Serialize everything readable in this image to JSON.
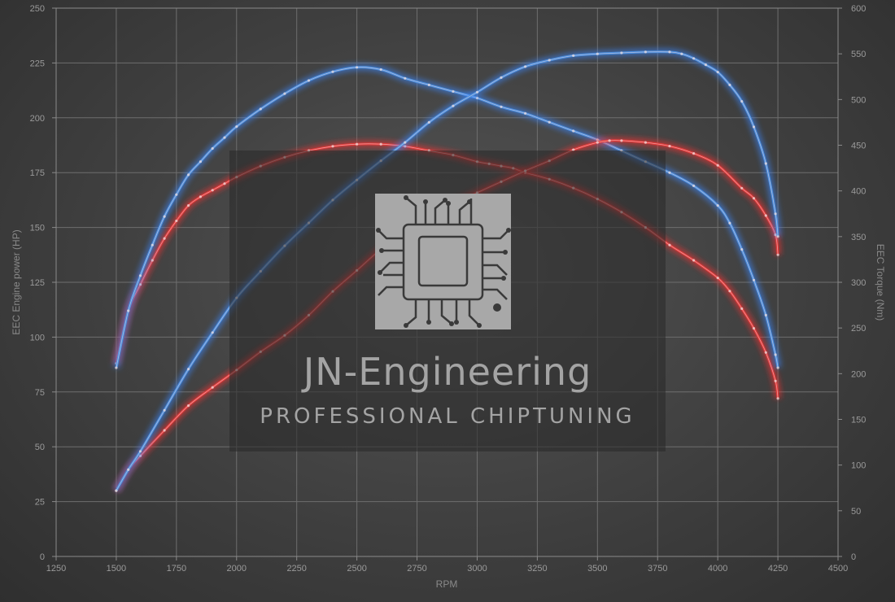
{
  "watermark": {
    "title": "JN-Engineering",
    "subtitle": "PROFESSIONAL CHIPTUNING",
    "logo_icon": "microchip-icon"
  },
  "chart_data": {
    "type": "line",
    "xlabel": "RPM",
    "ylabel_left": "EEC Engine power (HP)",
    "ylabel_right": "EEC Torque (Nm)",
    "xlim": [
      1250,
      4500
    ],
    "xticks": [
      1250,
      1500,
      1750,
      2000,
      2250,
      2500,
      2750,
      3000,
      3250,
      3500,
      3750,
      4000,
      4250,
      4500
    ],
    "ylim_left": [
      0,
      250
    ],
    "yticks_left": [
      0,
      25,
      50,
      75,
      100,
      125,
      150,
      175,
      200,
      225,
      250
    ],
    "ylim_right": [
      0,
      600
    ],
    "yticks_right": [
      0,
      50,
      100,
      150,
      200,
      250,
      300,
      350,
      400,
      450,
      500,
      550,
      600
    ],
    "grid": true,
    "colors": {
      "stock": "#e23a3a",
      "tuned": "#4a8fe0",
      "stock_glow": "#ff3030",
      "tuned_glow": "#3d86ff"
    },
    "series": [
      {
        "key": "stock_power",
        "axis": "left",
        "color": "stock",
        "x": [
          1500,
          1550,
          1600,
          1650,
          1700,
          1750,
          1800,
          1850,
          1900,
          1950,
          2000,
          2100,
          2200,
          2300,
          2400,
          2500,
          2600,
          2700,
          2800,
          2900,
          3000,
          3050,
          3100,
          3150,
          3200,
          3300,
          3400,
          3500,
          3600,
          3700,
          3800,
          3900,
          4000,
          4050,
          4100,
          4150,
          4200,
          4240,
          4250
        ],
        "values": [
          88,
          112,
          124,
          135,
          145,
          153,
          160,
          164,
          167,
          170,
          173,
          178,
          182,
          185,
          187,
          188,
          188,
          187,
          185,
          183,
          180,
          179,
          178,
          177,
          175,
          172,
          168,
          163,
          157,
          150,
          142,
          135,
          127,
          121,
          113,
          104,
          93,
          80,
          72
        ]
      },
      {
        "key": "tuned_power",
        "axis": "left",
        "color": "tuned",
        "x": [
          1500,
          1550,
          1600,
          1650,
          1700,
          1750,
          1800,
          1850,
          1900,
          1950,
          2000,
          2100,
          2200,
          2300,
          2400,
          2500,
          2600,
          2700,
          2800,
          2900,
          3000,
          3100,
          3200,
          3300,
          3400,
          3500,
          3600,
          3700,
          3800,
          3900,
          4000,
          4050,
          4100,
          4150,
          4200,
          4240,
          4250
        ],
        "values": [
          86,
          112,
          128,
          142,
          155,
          165,
          174,
          180,
          186,
          191,
          196,
          204,
          211,
          217,
          221,
          223,
          222,
          218,
          215,
          212,
          209,
          205,
          202,
          198,
          194,
          190,
          185,
          180,
          175,
          169,
          160,
          152,
          140,
          126,
          110,
          92,
          86
        ]
      },
      {
        "key": "stock_torque",
        "axis": "right",
        "color": "stock",
        "x": [
          1500,
          1550,
          1600,
          1700,
          1800,
          1900,
          2000,
          2100,
          2200,
          2300,
          2400,
          2500,
          2600,
          2700,
          2800,
          2900,
          3000,
          3100,
          3200,
          3300,
          3400,
          3500,
          3550,
          3600,
          3700,
          3800,
          3900,
          4000,
          4100,
          4150,
          4200,
          4240,
          4250
        ],
        "values": [
          72,
          95,
          110,
          138,
          165,
          185,
          204,
          224,
          242,
          264,
          290,
          313,
          336,
          353,
          370,
          385,
          398,
          410,
          422,
          433,
          445,
          453,
          455,
          455,
          453,
          449,
          441,
          428,
          403,
          392,
          373,
          352,
          330
        ]
      },
      {
        "key": "tuned_torque",
        "axis": "right",
        "color": "tuned",
        "x": [
          1500,
          1550,
          1600,
          1700,
          1800,
          1900,
          2000,
          2100,
          2200,
          2300,
          2400,
          2500,
          2600,
          2700,
          2800,
          2900,
          3000,
          3100,
          3200,
          3300,
          3400,
          3500,
          3600,
          3700,
          3800,
          3850,
          3900,
          3950,
          4000,
          4050,
          4100,
          4150,
          4200,
          4240,
          4250
        ],
        "values": [
          72,
          95,
          115,
          160,
          205,
          245,
          283,
          312,
          340,
          365,
          390,
          412,
          433,
          453,
          475,
          493,
          508,
          524,
          536,
          543,
          548,
          550,
          551,
          552,
          552,
          550,
          545,
          538,
          530,
          516,
          498,
          470,
          430,
          375,
          350
        ]
      }
    ]
  }
}
